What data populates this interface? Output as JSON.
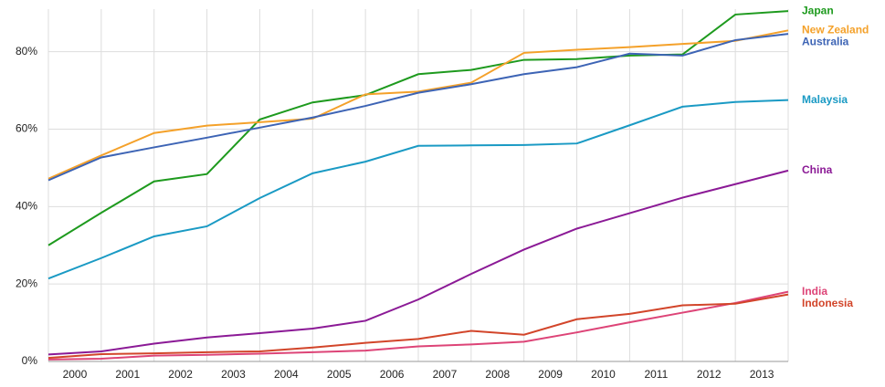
{
  "chart_data": {
    "type": "line",
    "x": [
      1999.5,
      2000.5,
      2001.5,
      2002.5,
      2003.5,
      2004.5,
      2005.5,
      2006.5,
      2007.5,
      2008.5,
      2009.5,
      2010.5,
      2011.5,
      2012.5,
      2013.5
    ],
    "xlim": [
      1999.5,
      2013.5
    ],
    "xticks": [
      2000,
      2001,
      2002,
      2003,
      2004,
      2005,
      2006,
      2007,
      2008,
      2009,
      2010,
      2011,
      2012,
      2013
    ],
    "ylim": [
      0,
      91
    ],
    "yticks": [
      {
        "value": 0,
        "label": "0%"
      },
      {
        "value": 20,
        "label": "20%"
      },
      {
        "value": 40,
        "label": "40%"
      },
      {
        "value": 60,
        "label": "60%"
      },
      {
        "value": 80,
        "label": "80%"
      }
    ],
    "grid": true,
    "series": [
      {
        "name": "Japan",
        "color": "#1e9a1e",
        "values": [
          30,
          38.4,
          46.5,
          48.4,
          62.5,
          66.9,
          68.8,
          74.2,
          75.3,
          77.9,
          78.1,
          79,
          79.3,
          89.6,
          90.5
        ]
      },
      {
        "name": "New Zealand",
        "color": "#f4a12a",
        "values": [
          47.2,
          53.2,
          59,
          60.9,
          61.8,
          62.7,
          69,
          69.7,
          72,
          79.7,
          80.5,
          81.2,
          82,
          82.8,
          85.5
        ]
      },
      {
        "name": "Australia",
        "color": "#3d64b5",
        "values": [
          46.8,
          52.7,
          55.3,
          57.8,
          60.4,
          63,
          66,
          69.4,
          71.6,
          74.2,
          76,
          79.5,
          79,
          83,
          84.6
        ]
      },
      {
        "name": "Malaysia",
        "color": "#1a9ac4",
        "values": [
          21.4,
          26.7,
          32.3,
          34.9,
          42.2,
          48.6,
          51.6,
          55.7,
          55.8,
          55.9,
          56.3,
          61,
          65.8,
          67,
          67.5
        ]
      },
      {
        "name": "China",
        "color": "#8b1a96",
        "values": [
          1.8,
          2.6,
          4.6,
          6.2,
          7.3,
          8.5,
          10.5,
          16,
          22.6,
          28.9,
          34.3,
          38.3,
          42.3,
          45.8,
          49.3
        ]
      },
      {
        "name": "India",
        "color": "#dd4477",
        "values": [
          0.5,
          0.7,
          1.5,
          1.7,
          2,
          2.4,
          2.8,
          3.9,
          4.4,
          5.1,
          7.5,
          10.1,
          12.6,
          15.1,
          18
        ]
      },
      {
        "name": "Indonesia",
        "color": "#d2452a",
        "values": [
          0.9,
          1.9,
          2.1,
          2.4,
          2.6,
          3.6,
          4.8,
          5.8,
          7.9,
          6.9,
          10.9,
          12.3,
          14.5,
          14.9,
          17.3
        ]
      }
    ]
  }
}
